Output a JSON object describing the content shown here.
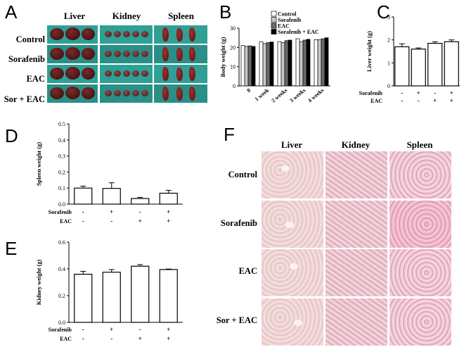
{
  "panel_letters": {
    "a": "A",
    "b": "B",
    "c": "C",
    "d": "D",
    "e": "E",
    "f": "F"
  },
  "panel_a": {
    "columns": [
      "Liver",
      "Kidney",
      "Spleen"
    ],
    "rows": [
      "Control",
      "Sorafenib",
      "EAC",
      "Sor + EAC"
    ],
    "colors": {
      "background": "#2fa095",
      "liver": "#5a1a1a",
      "kidney": "#6a2e2e",
      "spleen": "#8a2020"
    }
  },
  "panel_f": {
    "columns": [
      "Liver",
      "Kidney",
      "Spleen"
    ],
    "rows": [
      "Control",
      "Sorafenib",
      "EAC",
      "Sor + EAC"
    ]
  },
  "condition_table": {
    "row_labels": [
      "Sorafenib",
      "EAC"
    ],
    "sorafenib": [
      "-",
      "+",
      "-",
      "+"
    ],
    "eac": [
      "-",
      "-",
      "+",
      "+"
    ]
  },
  "chart_data": [
    {
      "id": "B",
      "type": "bar",
      "ylabel": "Body weight (g)",
      "categories": [
        "0",
        "1 week",
        "2 weeks",
        "3 weeks",
        "4 weeks"
      ],
      "ylim": [
        0,
        30
      ],
      "yticks": [
        0,
        10,
        20,
        30
      ],
      "legend_position": "top-right",
      "series": [
        {
          "name": "Control",
          "color": "#ffffff",
          "values": [
            21,
            23,
            23,
            24.5,
            24
          ]
        },
        {
          "name": "Sorafenib",
          "color": "#c8c8c8",
          "values": [
            20.5,
            22,
            22.5,
            23,
            24
          ]
        },
        {
          "name": "EAC",
          "color": "#6a6a6a",
          "values": [
            20.8,
            22.5,
            23.5,
            23.8,
            24.5
          ]
        },
        {
          "name": "Sorafenib + EAC",
          "color": "#000000",
          "values": [
            20.5,
            22.8,
            23.8,
            24.2,
            25
          ]
        }
      ]
    },
    {
      "id": "C",
      "type": "bar",
      "ylabel": "Liver weight (g)",
      "ylim": [
        0,
        3
      ],
      "yticks": [
        0,
        1,
        2,
        3
      ],
      "tick_format": 0,
      "values": [
        1.7,
        1.6,
        1.85,
        1.92
      ],
      "errors": [
        0.13,
        0.05,
        0.07,
        0.08
      ]
    },
    {
      "id": "D",
      "type": "bar",
      "ylabel": "Spleen weight (g)",
      "ylim": [
        0,
        0.5
      ],
      "yticks": [
        0.0,
        0.1,
        0.2,
        0.3,
        0.4,
        0.5
      ],
      "tick_format": 1,
      "values": [
        0.1,
        0.098,
        0.035,
        0.068
      ],
      "errors": [
        0.012,
        0.035,
        0.007,
        0.018
      ]
    },
    {
      "id": "E",
      "type": "bar",
      "ylabel": "Kidney weight (g)",
      "ylim": [
        0,
        0.6
      ],
      "yticks": [
        0.0,
        0.2,
        0.4,
        0.6
      ],
      "tick_format": 1,
      "values": [
        0.36,
        0.375,
        0.42,
        0.395
      ],
      "errors": [
        0.022,
        0.02,
        0.012,
        0.004
      ]
    }
  ]
}
